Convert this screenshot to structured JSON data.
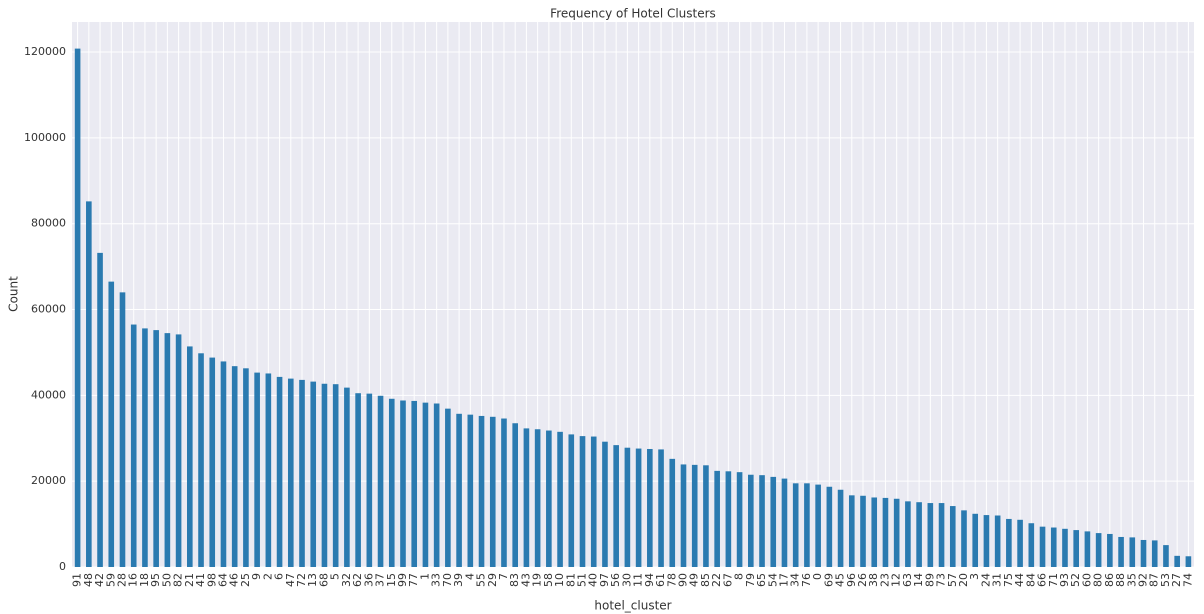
{
  "chart_data": {
    "type": "bar",
    "title": "Frequency of Hotel Clusters",
    "x_label": "hotel_cluster",
    "y_label": "Count",
    "categories": [
      "91",
      "48",
      "42",
      "59",
      "28",
      "16",
      "18",
      "95",
      "50",
      "82",
      "21",
      "41",
      "98",
      "64",
      "46",
      "25",
      "9",
      "2",
      "6",
      "47",
      "72",
      "13",
      "68",
      "5",
      "32",
      "62",
      "36",
      "37",
      "15",
      "99",
      "77",
      "1",
      "33",
      "70",
      "39",
      "4",
      "55",
      "29",
      "7",
      "83",
      "43",
      "19",
      "58",
      "10",
      "81",
      "51",
      "40",
      "97",
      "56",
      "30",
      "11",
      "94",
      "61",
      "78",
      "90",
      "49",
      "85",
      "22",
      "67",
      "8",
      "79",
      "65",
      "54",
      "17",
      "34",
      "76",
      "0",
      "69",
      "45",
      "96",
      "26",
      "38",
      "23",
      "12",
      "63",
      "14",
      "89",
      "73",
      "57",
      "20",
      "3",
      "24",
      "31",
      "75",
      "44",
      "84",
      "66",
      "71",
      "93",
      "52",
      "60",
      "80",
      "86",
      "88",
      "35",
      "92",
      "87",
      "53",
      "27",
      "74"
    ],
    "values": [
      120800,
      85200,
      73200,
      66500,
      64000,
      56500,
      55600,
      55200,
      54500,
      54200,
      51400,
      49800,
      48800,
      47900,
      46800,
      46300,
      45300,
      45100,
      44300,
      43900,
      43600,
      43200,
      42700,
      42600,
      41800,
      40500,
      40400,
      39900,
      39200,
      38800,
      38700,
      38300,
      38100,
      36900,
      35700,
      35500,
      35200,
      35000,
      34600,
      33500,
      32300,
      32100,
      31800,
      31500,
      30900,
      30500,
      30400,
      29200,
      28400,
      27800,
      27600,
      27500,
      27400,
      25200,
      23900,
      23800,
      23700,
      22400,
      22300,
      22100,
      21500,
      21400,
      21000,
      20600,
      19500,
      19500,
      19200,
      18700,
      18000,
      16700,
      16600,
      16200,
      16100,
      15900,
      15300,
      15100,
      14900,
      14900,
      14200,
      13200,
      12400,
      12100,
      12000,
      11200,
      11000,
      10200,
      9400,
      9200,
      8900,
      8600,
      8300,
      7900,
      7700,
      7000,
      6900,
      6300,
      6200,
      5100,
      2600,
      2500
    ],
    "color": "#2a7ab0",
    "ylim": [
      0,
      127000
    ],
    "yticks": [
      0,
      20000,
      40000,
      60000,
      80000,
      100000,
      120000
    ],
    "grid": true
  }
}
